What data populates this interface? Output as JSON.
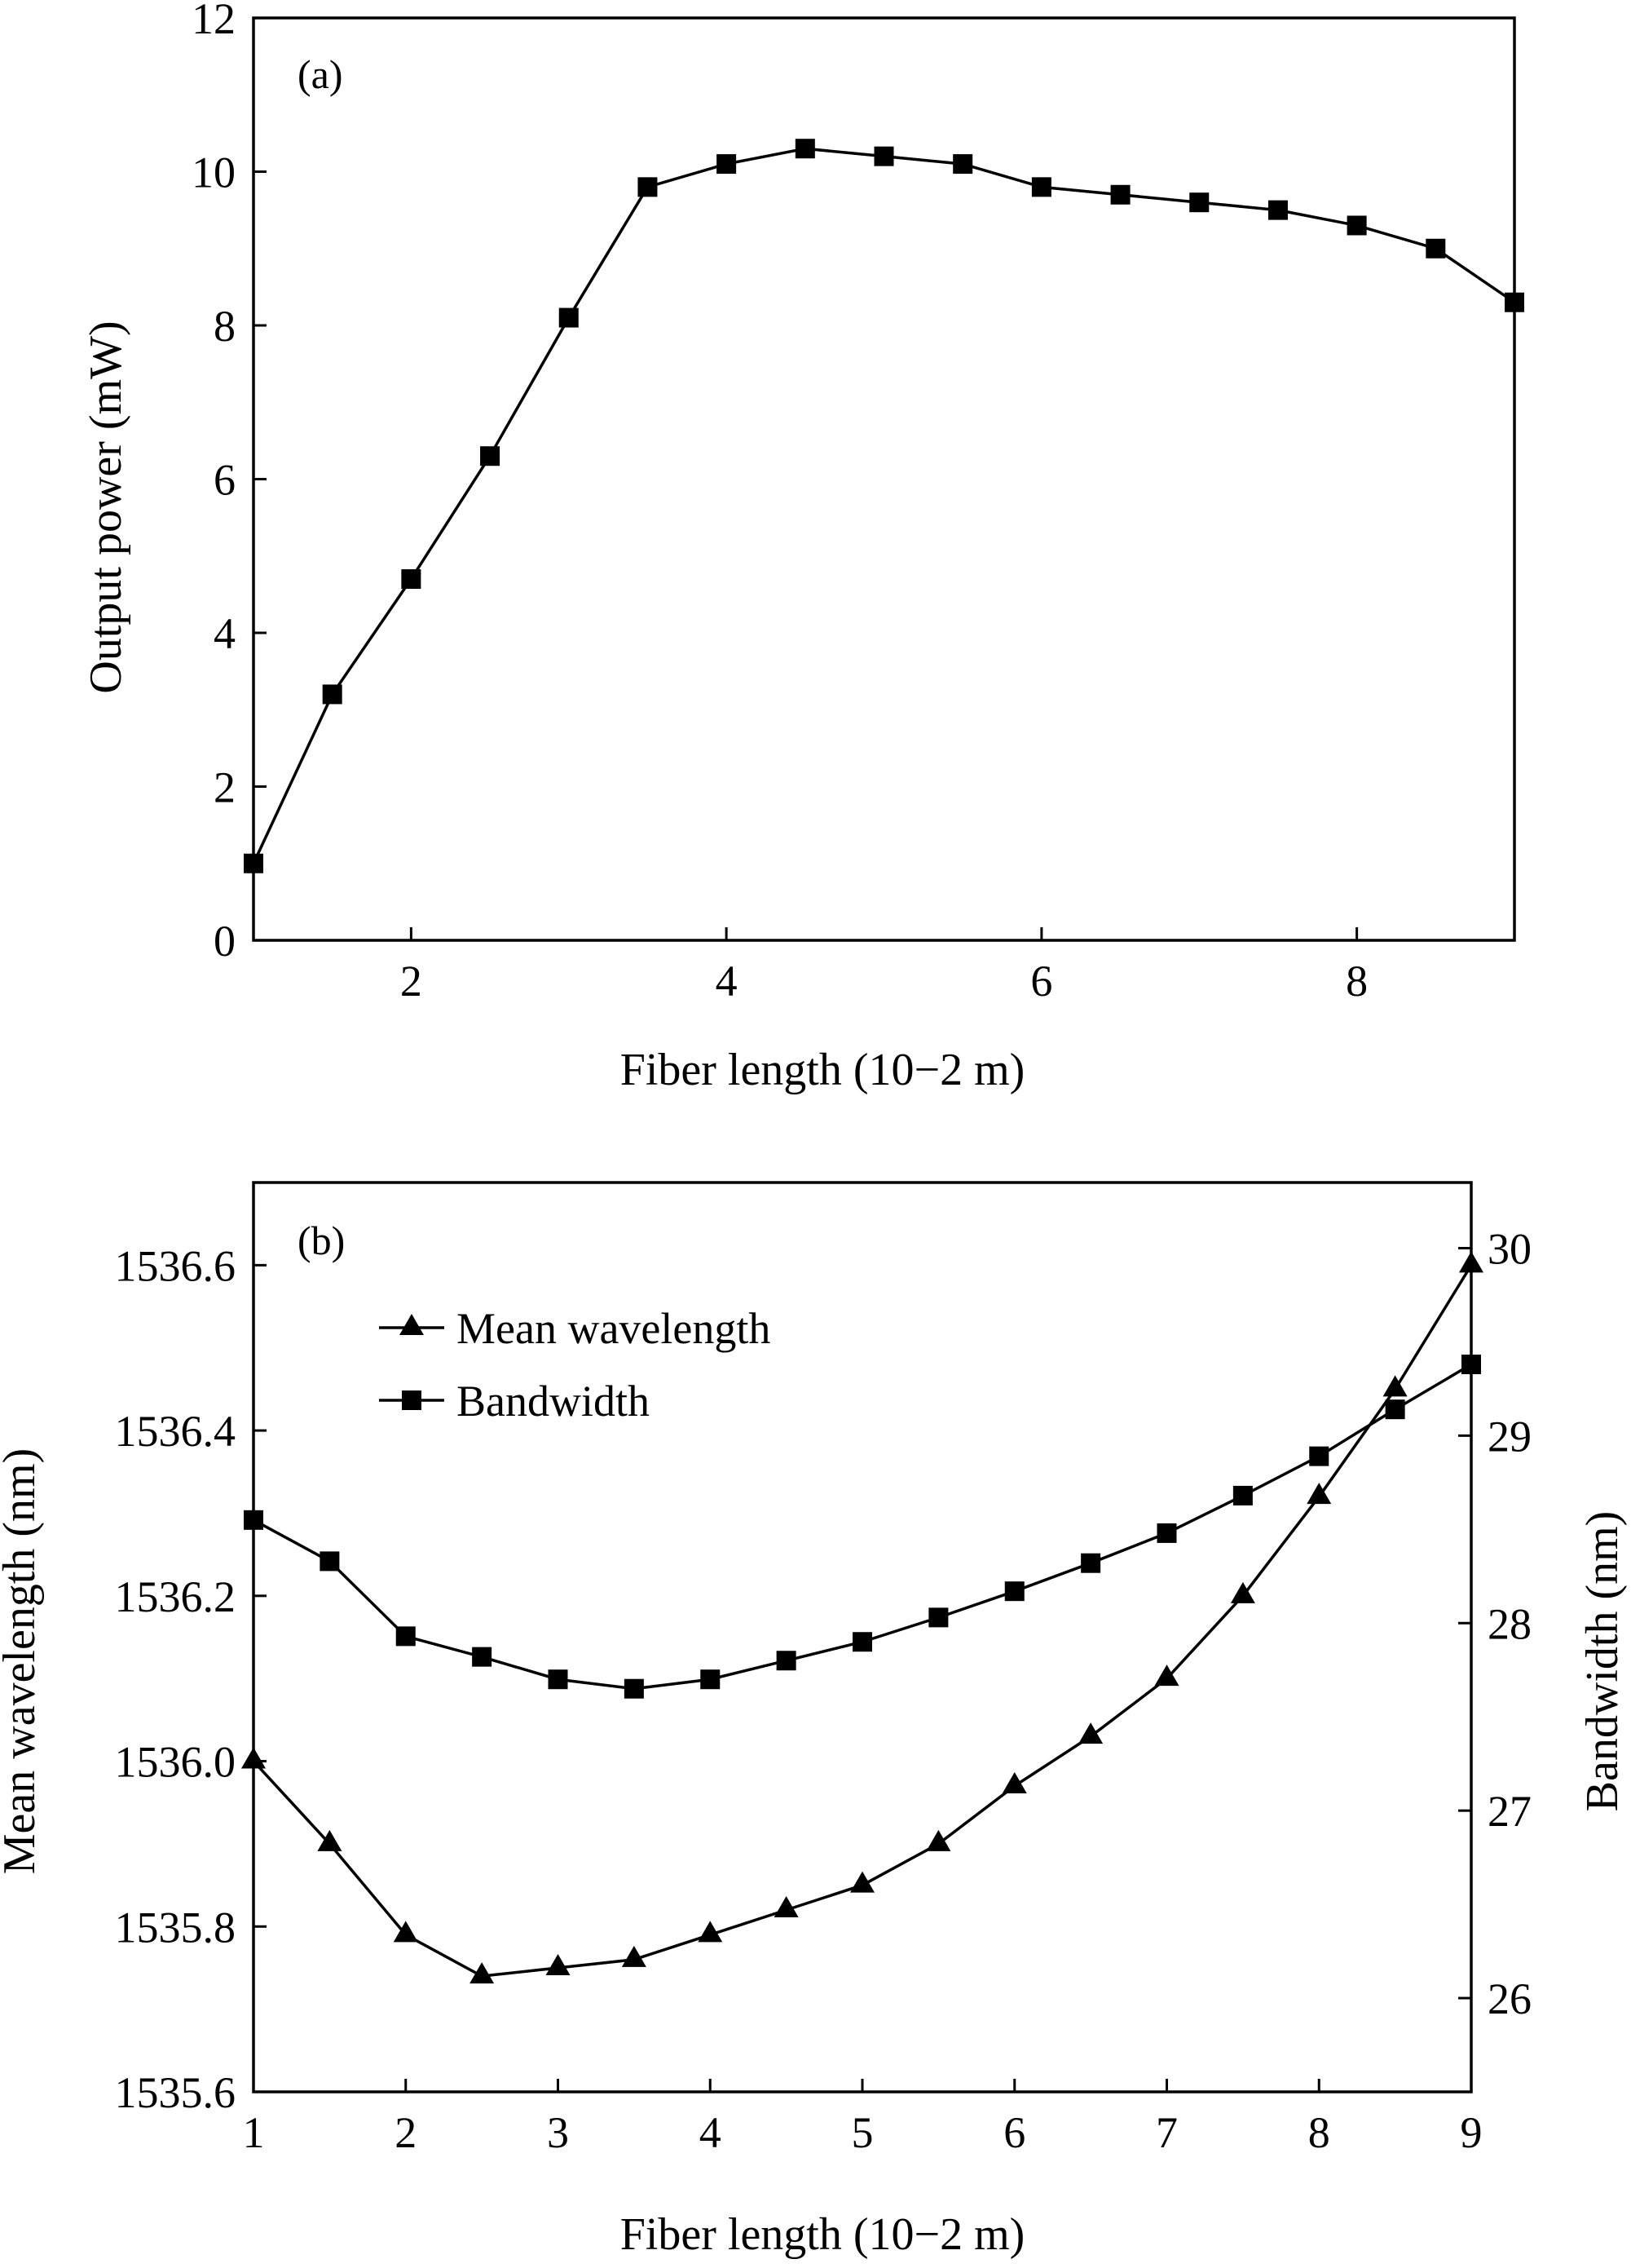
{
  "chart_data": [
    {
      "type": "line",
      "panel_label": "(a)",
      "xlabel": "Fiber length (10−2 m)",
      "ylabel": "Output power (mW)",
      "xlim": [
        1,
        9
      ],
      "ylim": [
        0,
        12
      ],
      "xticks": [
        2,
        4,
        6,
        8
      ],
      "yticks": [
        0,
        2,
        4,
        6,
        8,
        10,
        12
      ],
      "grid": false,
      "series": [
        {
          "marker": "square",
          "x": [
            1,
            1.5,
            2,
            2.5,
            3,
            3.5,
            4,
            4.5,
            5,
            5.5,
            6,
            6.5,
            7,
            7.5,
            8,
            8.5,
            9
          ],
          "y": [
            1.0,
            3.2,
            4.7,
            6.3,
            8.1,
            9.8,
            10.1,
            10.3,
            10.2,
            10.1,
            9.8,
            9.7,
            9.6,
            9.5,
            9.3,
            9.0,
            8.3
          ]
        }
      ]
    },
    {
      "type": "line",
      "panel_label": "(b)",
      "xlabel": "Fiber length (10−2 m)",
      "ylabel": "Mean wavelength (nm)",
      "y2label": "Bandwidth (nm)",
      "xlim": [
        1,
        9
      ],
      "ylim": [
        1535.6,
        1536.7
      ],
      "y2lim": [
        25.5,
        30.35
      ],
      "xticks": [
        1,
        2,
        3,
        4,
        5,
        6,
        7,
        8,
        9
      ],
      "yticks": [
        "1535.6",
        "1535.8",
        "1536.0",
        "1536.2",
        "1536.4",
        "1536.6"
      ],
      "y2ticks": [
        26,
        27,
        28,
        29,
        30
      ],
      "grid": false,
      "legend": "top-left",
      "series": [
        {
          "name": "Mean wavelength",
          "axis": "left",
          "marker": "triangle",
          "x": [
            1,
            1.5,
            2,
            2.5,
            3,
            3.5,
            4,
            4.5,
            5,
            5.5,
            6,
            6.5,
            7,
            7.5,
            8,
            8.5,
            9
          ],
          "y": [
            1536.0,
            1535.9,
            1535.79,
            1535.74,
            1535.75,
            1535.76,
            1535.79,
            1535.82,
            1535.85,
            1535.9,
            1535.97,
            1536.03,
            1536.1,
            1536.2,
            1536.32,
            1536.45,
            1536.6
          ]
        },
        {
          "name": "Bandwidth",
          "axis": "right",
          "marker": "square",
          "x": [
            1,
            1.5,
            2,
            2.5,
            3,
            3.5,
            4,
            4.5,
            5,
            5.5,
            6,
            6.5,
            7,
            7.5,
            8,
            8.5,
            9
          ],
          "y": [
            28.55,
            28.33,
            27.93,
            27.82,
            27.7,
            27.65,
            27.7,
            27.8,
            27.9,
            28.03,
            28.17,
            28.32,
            28.48,
            28.68,
            28.89,
            29.14,
            29.38
          ]
        }
      ]
    }
  ]
}
